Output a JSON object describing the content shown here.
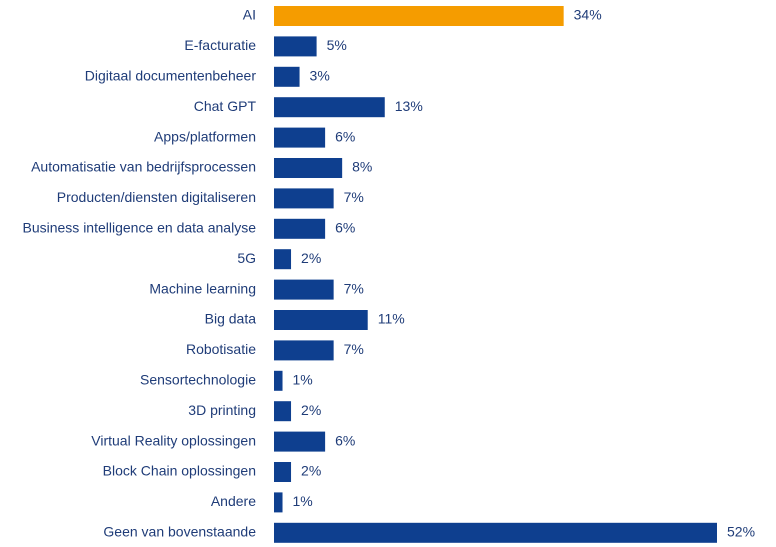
{
  "chart_data": {
    "type": "bar",
    "orientation": "horizontal",
    "categories": [
      "AI",
      "E-facturatie",
      "Digitaal documentenbeheer",
      "Chat GPT",
      "Apps/platformen",
      "Automatisatie van bedrijfsprocessen",
      "Producten/diensten digitaliseren",
      "Business intelligence en data analyse",
      "5G",
      "Machine learning",
      "Big data",
      "Robotisatie",
      "Sensortechnologie",
      "3D printing",
      "Virtual Reality oplossingen",
      "Block Chain oplossingen",
      "Andere",
      "Geen van bovenstaande"
    ],
    "values": [
      34,
      5,
      3,
      13,
      6,
      8,
      7,
      6,
      2,
      7,
      11,
      7,
      1,
      2,
      6,
      2,
      1,
      52
    ],
    "value_labels": [
      "34%",
      "5%",
      "3%",
      "13%",
      "6%",
      "8%",
      "7%",
      "6%",
      "2%",
      "7%",
      "11%",
      "7%",
      "1%",
      "2%",
      "6%",
      "2%",
      "1%",
      "52%"
    ],
    "colors": [
      "#f59c00",
      "#0e3f8f",
      "#0e3f8f",
      "#0e3f8f",
      "#0e3f8f",
      "#0e3f8f",
      "#0e3f8f",
      "#0e3f8f",
      "#0e3f8f",
      "#0e3f8f",
      "#0e3f8f",
      "#0e3f8f",
      "#0e3f8f",
      "#0e3f8f",
      "#0e3f8f",
      "#0e3f8f",
      "#0e3f8f",
      "#0e3f8f"
    ]
  }
}
